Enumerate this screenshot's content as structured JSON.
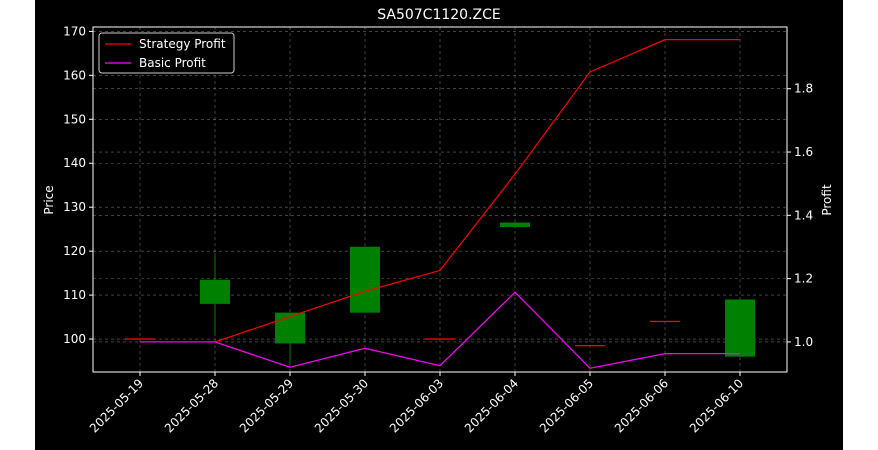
{
  "chart_data": {
    "type": "candlestick",
    "title": "SA507C1120.ZCE",
    "xlabel": "",
    "ylabel_left": "Price",
    "ylabel_right": "Profit",
    "categories": [
      "2025-05-19",
      "2025-05-28",
      "2025-05-29",
      "2025-05-30",
      "2025-06-03",
      "2025-06-04",
      "2025-06-05",
      "2025-06-06",
      "2025-06-10"
    ],
    "ylim_left": [
      92.5,
      171
    ],
    "ylim_right": [
      0.905,
      1.995
    ],
    "yticks_left": [
      100,
      110,
      120,
      130,
      140,
      150,
      160,
      170
    ],
    "yticks_right": [
      1.0,
      1.2,
      1.4,
      1.6,
      1.8
    ],
    "ytick_labels_right": [
      "1.0",
      "1.2",
      "1.4",
      "1.6",
      "1.8"
    ],
    "grid": true,
    "legend_position": "top-left",
    "candles": [
      {
        "open": 100.0,
        "close": 100.0,
        "high": 100.0,
        "low": 100.0,
        "color": "red"
      },
      {
        "open": 108.0,
        "close": 113.5,
        "high": 119.5,
        "low": 101.0,
        "color": "green"
      },
      {
        "open": 99.0,
        "close": 106.0,
        "high": 106.0,
        "low": 94.5,
        "color": "green"
      },
      {
        "open": 106.0,
        "close": 121.0,
        "high": 121.0,
        "low": 106.0,
        "color": "green"
      },
      {
        "open": 100.0,
        "close": 100.0,
        "high": 100.0,
        "low": 100.0,
        "color": "red"
      },
      {
        "open": 125.5,
        "close": 126.5,
        "high": 126.5,
        "low": 125.5,
        "color": "green"
      },
      {
        "open": 98.5,
        "close": 98.5,
        "high": 98.5,
        "low": 98.5,
        "color": "red"
      },
      {
        "open": 104.0,
        "close": 104.0,
        "high": 104.0,
        "low": 104.0,
        "color": "red"
      },
      {
        "open": 96.0,
        "close": 109.0,
        "high": 109.0,
        "low": 96.0,
        "color": "green"
      }
    ],
    "series": [
      {
        "name": "Strategy Profit",
        "color": "#ff0000",
        "axis": "right",
        "values": [
          1.0,
          1.0,
          1.08,
          1.16,
          1.226,
          1.53,
          1.853,
          1.955,
          1.955
        ]
      },
      {
        "name": "Basic Profit",
        "color": "#ff00ff",
        "axis": "right",
        "values": [
          1.0,
          1.0,
          0.92,
          0.98,
          0.925,
          1.157,
          0.917,
          0.963,
          0.963
        ]
      }
    ]
  }
}
